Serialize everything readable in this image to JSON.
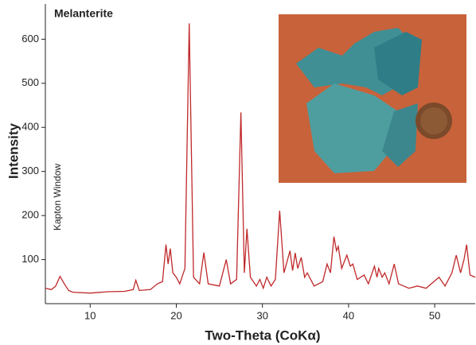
{
  "chart_data": {
    "type": "line",
    "title": "Melanterite",
    "annotation": "Kapton Window",
    "x_label": "Two-Theta (CoKα)",
    "y_label": "Intensity",
    "xlim": [
      4.8,
      54.7
    ],
    "xticks": [
      10,
      20,
      30,
      40,
      50
    ],
    "ylim": [
      0,
      680
    ],
    "yticks": [
      100,
      200,
      300,
      400,
      500,
      600
    ],
    "grid": false,
    "x": [
      4.8,
      5.5,
      6.0,
      6.5,
      7.0,
      7.5,
      8,
      10,
      12,
      14,
      15.0,
      15.3,
      15.7,
      17,
      17.8,
      18.4,
      18.8,
      19.05,
      19.3,
      19.6,
      20.0,
      20.4,
      21.0,
      21.5,
      22.0,
      22.7,
      23.2,
      23.7,
      25.0,
      25.8,
      26.3,
      27.0,
      27.5,
      27.9,
      28.2,
      28.6,
      29.3,
      29.7,
      30.1,
      30.5,
      31.0,
      31.5,
      32.0,
      32.5,
      33.2,
      33.5,
      33.8,
      34.1,
      34.5,
      34.9,
      35.2,
      36.0,
      37.0,
      37.5,
      37.9,
      38.3,
      38.6,
      38.8,
      39.2,
      39.8,
      40.2,
      40.5,
      41.0,
      41.8,
      42.3,
      43.0,
      43.3,
      43.5,
      43.9,
      44.2,
      44.7,
      45.3,
      45.8,
      47,
      48.0,
      49,
      50.5,
      51.2,
      52.0,
      52.5,
      53.0,
      53.4,
      53.7,
      54.1,
      54.7
    ],
    "series": [
      {
        "color": "#c0282a",
        "values": [
          35,
          32,
          40,
          62,
          45,
          30,
          26,
          24,
          27,
          28,
          32,
          53,
          30,
          32,
          45,
          50,
          134,
          90,
          125,
          70,
          60,
          45,
          80,
          636,
          60,
          45,
          116,
          45,
          40,
          100,
          45,
          55,
          434,
          70,
          170,
          60,
          40,
          55,
          35,
          60,
          40,
          55,
          211,
          70,
          120,
          75,
          115,
          80,
          105,
          60,
          70,
          40,
          50,
          90,
          70,
          152,
          120,
          130,
          80,
          110,
          85,
          90,
          55,
          65,
          45,
          85,
          60,
          80,
          60,
          70,
          45,
          90,
          45,
          35,
          40,
          35,
          60,
          40,
          70,
          110,
          70,
          100,
          134,
          65,
          60
        ]
      }
    ]
  }
}
